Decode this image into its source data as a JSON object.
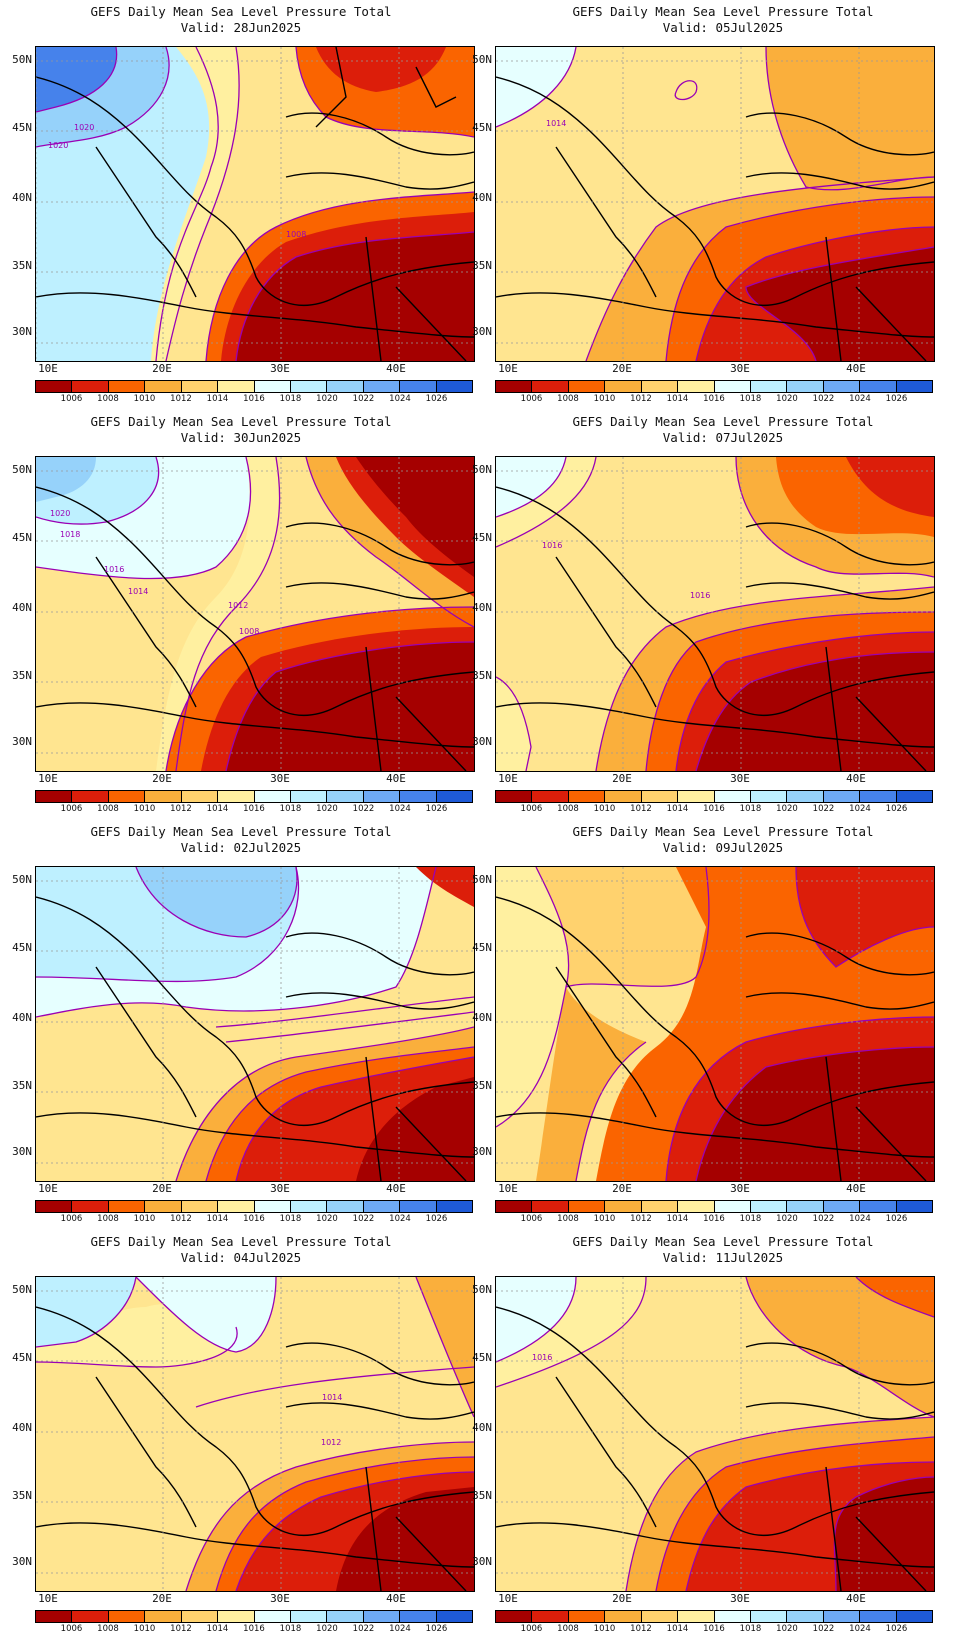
{
  "title": "GEFS Daily Mean Sea Level Pressure Total",
  "x_ticks": [
    "10E",
    "20E",
    "30E",
    "40E"
  ],
  "y_ticks": [
    "50N",
    "45N",
    "40N",
    "35N",
    "30N"
  ],
  "colorbar": {
    "levels": [
      "1006",
      "1008",
      "1010",
      "1012",
      "1014",
      "1016",
      "1018",
      "1020",
      "1022",
      "1024",
      "1026"
    ],
    "colors": [
      "#A50000",
      "#DC1E0A",
      "#FA6400",
      "#FAAF3C",
      "#FFD26E",
      "#FFF0A0",
      "#E6FFFF",
      "#BEF0FF",
      "#96D2FA",
      "#6EAAF5",
      "#4682EB",
      "#1E5AD7"
    ]
  },
  "contour_color": "#9a00b4",
  "panels": [
    {
      "valid": "Valid: 28Jun2025",
      "labels": [
        "1020",
        "1020",
        "1008"
      ]
    },
    {
      "valid": "Valid: 30Jun2025",
      "labels": [
        "1020",
        "1018",
        "1016",
        "1014",
        "1012",
        "1008"
      ]
    },
    {
      "valid": "Valid: 02Jul2025",
      "labels": []
    },
    {
      "valid": "Valid: 04Jul2025",
      "labels": [
        "1014",
        "1012"
      ]
    },
    {
      "valid": "Valid: 05Jul2025",
      "labels": [
        "1014"
      ]
    },
    {
      "valid": "Valid: 07Jul2025",
      "labels": [
        "1016",
        "1016"
      ]
    },
    {
      "valid": "Valid: 09Jul2025",
      "labels": []
    },
    {
      "valid": "Valid: 11Jul2025",
      "labels": [
        "1016"
      ]
    }
  ]
}
